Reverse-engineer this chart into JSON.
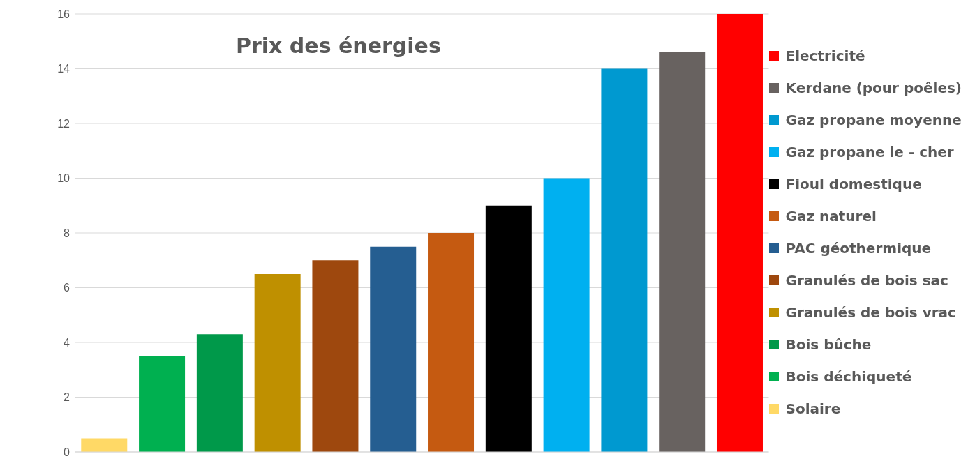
{
  "chart_data": {
    "type": "bar",
    "title": "Prix des énergies",
    "stacked": true,
    "categories": [
      null,
      null,
      null,
      null,
      null,
      null,
      null,
      null,
      null,
      null,
      null,
      null
    ],
    "series": [
      {
        "name": "Electricité",
        "color": "#ff0000",
        "values": [
          null,
          null,
          null,
          null,
          null,
          null,
          null,
          null,
          null,
          null,
          null,
          16
        ]
      },
      {
        "name": "Kerdane (pour poêles)",
        "color": "#686260",
        "values": [
          null,
          null,
          null,
          null,
          null,
          null,
          null,
          null,
          null,
          null,
          14.6,
          null
        ]
      },
      {
        "name": "Gaz propane moyenne",
        "color": "#0099d0",
        "values": [
          null,
          null,
          null,
          null,
          null,
          null,
          null,
          null,
          null,
          14,
          null,
          null
        ]
      },
      {
        "name": "Gaz propane le - cher",
        "color": "#00b0f0",
        "values": [
          null,
          null,
          null,
          null,
          null,
          null,
          null,
          null,
          10,
          null,
          null,
          null
        ]
      },
      {
        "name": "Fioul domestique",
        "color": "#000000",
        "values": [
          null,
          null,
          null,
          null,
          null,
          null,
          null,
          9,
          null,
          null,
          null,
          null
        ]
      },
      {
        "name": "Gaz naturel",
        "color": "#c55a11",
        "values": [
          null,
          null,
          null,
          null,
          null,
          null,
          8,
          null,
          null,
          null,
          null,
          null
        ]
      },
      {
        "name": "PAC géothermique",
        "color": "#255e91",
        "values": [
          null,
          null,
          null,
          null,
          null,
          7.5,
          null,
          null,
          null,
          null,
          null,
          null
        ]
      },
      {
        "name": "Granulés de bois sac",
        "color": "#9e480e",
        "values": [
          null,
          null,
          null,
          null,
          7,
          null,
          null,
          null,
          null,
          null,
          null,
          null
        ]
      },
      {
        "name": "Granulés de bois vrac",
        "color": "#bf9000",
        "values": [
          null,
          null,
          null,
          6.5,
          null,
          null,
          null,
          null,
          null,
          null,
          null,
          null
        ]
      },
      {
        "name": "Bois bûche",
        "color": "#00994a",
        "values": [
          null,
          null,
          4.3,
          null,
          null,
          null,
          null,
          null,
          null,
          null,
          null,
          null
        ]
      },
      {
        "name": "Bois déchiqueté",
        "color": "#00b050",
        "values": [
          null,
          3.5,
          null,
          null,
          null,
          null,
          null,
          null,
          null,
          null,
          null,
          null
        ]
      },
      {
        "name": "Solaire",
        "color": "#ffd966",
        "values": [
          0.5,
          null,
          null,
          null,
          null,
          null,
          null,
          null,
          null,
          null,
          null,
          null
        ]
      }
    ],
    "ylim": [
      0,
      16
    ],
    "yticks": [
      0,
      2,
      4,
      6,
      8,
      10,
      12,
      14,
      16
    ],
    "grid": "y",
    "legend": "right"
  }
}
